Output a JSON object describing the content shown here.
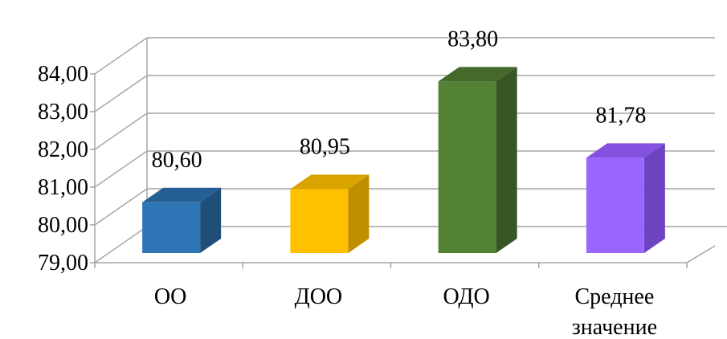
{
  "chart_data": {
    "type": "bar",
    "title": "",
    "xlabel": "",
    "ylabel": "",
    "categories": [
      "ОО",
      "ДОО",
      "ОДО",
      "Среднее значение"
    ],
    "values": [
      80.6,
      80.95,
      83.8,
      81.78
    ],
    "data_labels": [
      "80,60",
      "80,95",
      "83,80",
      "81,78"
    ],
    "y_tick_labels": [
      "79,00",
      "80,00",
      "81,00",
      "82,00",
      "83,00",
      "84,00"
    ],
    "ylim": [
      79,
      84
    ],
    "y_ticks": [
      79,
      80,
      81,
      82,
      83,
      84
    ],
    "grid": true,
    "legend": "none",
    "three_d": true,
    "colors": [
      "#2e75b6",
      "#ffc000",
      "#548235",
      "#9966ff"
    ],
    "side_colors": [
      "#1f4e79",
      "#bf8f00",
      "#375623",
      "#6e43c0"
    ],
    "top_colors": [
      "#255f94",
      "#d9a300",
      "#44692b",
      "#8452e0"
    ]
  }
}
